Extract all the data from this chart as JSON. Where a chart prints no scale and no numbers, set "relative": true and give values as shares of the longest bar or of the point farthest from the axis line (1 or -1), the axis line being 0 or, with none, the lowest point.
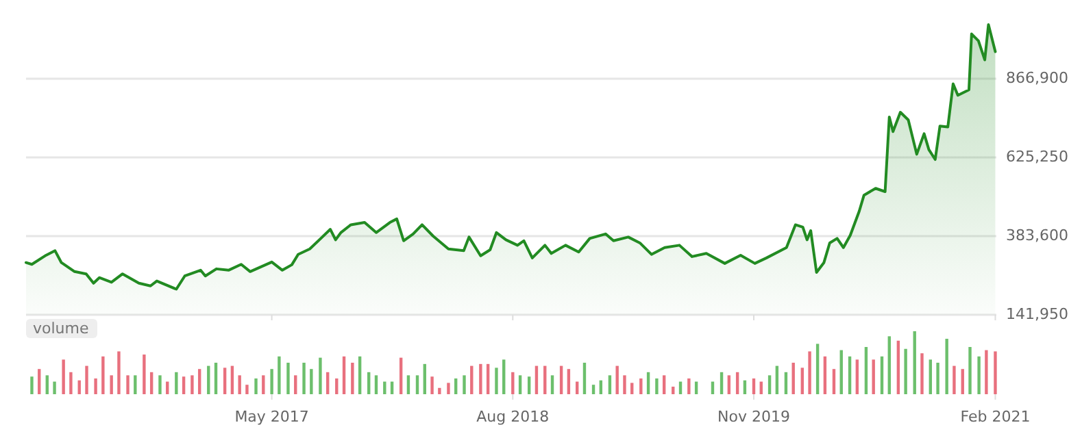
{
  "chart_data": [
    {
      "type": "area",
      "color": "#228b22",
      "grid": "y",
      "tick_labels": "y",
      "xlim": [
        "2016-01-21",
        "2021-02-03"
      ],
      "ylim": [
        141950,
        1108550
      ],
      "yticks": [
        {
          "value": 141950,
          "label": "141,950"
        },
        {
          "value": 383600,
          "label": "383,600"
        },
        {
          "value": 625250,
          "label": "625,250"
        },
        {
          "value": 866900,
          "label": "866,900"
        }
      ],
      "x": [
        "2016-01-21",
        "2016-02-01",
        "2016-02-28",
        "2016-03-16",
        "2016-03-28",
        "2016-04-22",
        "2016-05-14",
        "2016-05-28",
        "2016-06-08",
        "2016-07-01",
        "2016-07-22",
        "2016-08-22",
        "2016-09-13",
        "2016-09-25",
        "2016-11-01",
        "2016-11-17",
        "2016-12-17",
        "2016-12-26",
        "2017-01-16",
        "2017-02-08",
        "2017-03-04",
        "2017-03-21",
        "2017-05-01",
        "2017-05-21",
        "2017-06-08",
        "2017-06-20",
        "2017-07-12",
        "2017-08-02",
        "2017-08-20",
        "2017-08-30",
        "2017-09-09",
        "2017-09-28",
        "2017-10-24",
        "2017-11-15",
        "2017-12-11",
        "2017-12-24",
        "2018-01-06",
        "2018-01-24",
        "2018-02-10",
        "2018-03-03",
        "2018-04-01",
        "2018-04-30",
        "2018-05-10",
        "2018-06-01",
        "2018-06-19",
        "2018-07-01",
        "2018-07-19",
        "2018-08-10",
        "2018-08-22",
        "2018-09-07",
        "2018-10-01",
        "2018-10-13",
        "2018-11-09",
        "2018-12-04",
        "2018-12-25",
        "2019-01-24",
        "2019-02-08",
        "2019-03-08",
        "2019-03-30",
        "2019-04-21",
        "2019-05-16",
        "2019-06-13",
        "2019-07-07",
        "2019-08-03",
        "2019-09-07",
        "2019-10-07",
        "2019-11-03",
        "2019-11-25",
        "2020-01-02",
        "2020-01-19",
        "2020-02-02",
        "2020-02-10",
        "2020-02-17",
        "2020-02-28",
        "2020-03-13",
        "2020-03-24",
        "2020-04-07",
        "2020-04-19",
        "2020-05-02",
        "2020-05-19",
        "2020-05-28",
        "2020-06-19",
        "2020-07-07",
        "2020-07-15",
        "2020-07-22",
        "2020-08-05",
        "2020-08-20",
        "2020-09-05",
        "2020-09-19",
        "2020-09-28",
        "2020-10-10",
        "2020-10-19",
        "2020-11-03",
        "2020-11-13",
        "2020-11-22",
        "2020-12-13",
        "2020-12-18",
        "2020-12-31",
        "2021-01-12",
        "2021-01-19",
        "2021-02-01"
      ],
      "values": [
        302300,
        296900,
        324900,
        338800,
        302300,
        274700,
        267600,
        239100,
        256000,
        242000,
        267600,
        239100,
        230800,
        245800,
        220700,
        261300,
        278900,
        261300,
        283000,
        278900,
        296900,
        274700,
        304000,
        278900,
        295600,
        327500,
        344200,
        376500,
        404500,
        372300,
        394500,
        418400,
        425500,
        394500,
        425500,
        436400,
        369400,
        390300,
        418400,
        383600,
        344200,
        338800,
        380700,
        323300,
        341700,
        394500,
        372300,
        355500,
        369400,
        316600,
        355500,
        330400,
        355500,
        334600,
        376500,
        390300,
        369400,
        380700,
        362700,
        327500,
        348400,
        355500,
        320800,
        330400,
        299800,
        324900,
        299800,
        316600,
        348400,
        418400,
        411300,
        372300,
        400400,
        272400,
        302300,
        362700,
        376500,
        348400,
        386100,
        460300,
        509300,
        530200,
        520200,
        749400,
        704600,
        763900,
        740400,
        635000,
        697900,
        649300,
        618900,
        721300,
        718800,
        851200,
        816000,
        832800,
        1004400,
        983400,
        924700,
        1033000,
        949800
      ]
    },
    {
      "type": "bar",
      "title": "volume",
      "relative": true,
      "tick_labels": "x",
      "xlim": [
        "2016-01-21",
        "2021-02-03"
      ],
      "xticks": [
        {
          "value": "2017-05-01",
          "label": "May 2017"
        },
        {
          "value": "2018-08-01",
          "label": "Aug 2018"
        },
        {
          "value": "2019-11-01",
          "label": "Nov 2019"
        },
        {
          "value": "2021-02-01",
          "label": "Feb 2021"
        }
      ],
      "x": [
        "2016-02-01",
        "2016-02-15",
        "2016-03-01",
        "2016-03-15",
        "2016-04-01",
        "2016-04-15",
        "2016-05-01",
        "2016-05-15",
        "2016-06-01",
        "2016-06-15",
        "2016-07-01",
        "2016-07-15",
        "2016-08-01",
        "2016-08-15",
        "2016-09-01",
        "2016-09-15",
        "2016-10-01",
        "2016-10-15",
        "2016-11-01",
        "2016-11-15",
        "2016-12-01",
        "2016-12-15",
        "2017-01-01",
        "2017-01-15",
        "2017-02-01",
        "2017-02-15",
        "2017-03-01",
        "2017-03-15",
        "2017-04-01",
        "2017-04-15",
        "2017-05-01",
        "2017-05-15",
        "2017-06-01",
        "2017-06-15",
        "2017-07-01",
        "2017-07-15",
        "2017-08-01",
        "2017-08-15",
        "2017-09-01",
        "2017-09-15",
        "2017-10-01",
        "2017-10-15",
        "2017-11-01",
        "2017-11-15",
        "2017-12-01",
        "2017-12-15",
        "2018-01-01",
        "2018-01-15",
        "2018-02-01",
        "2018-02-15",
        "2018-03-01",
        "2018-03-15",
        "2018-04-01",
        "2018-04-15",
        "2018-05-01",
        "2018-05-15",
        "2018-06-01",
        "2018-06-15",
        "2018-07-01",
        "2018-07-15",
        "2018-08-01",
        "2018-08-15",
        "2018-09-01",
        "2018-09-15",
        "2018-10-01",
        "2018-10-15",
        "2018-11-01",
        "2018-11-15",
        "2018-12-01",
        "2018-12-15",
        "2019-01-01",
        "2019-01-15",
        "2019-02-01",
        "2019-02-15",
        "2019-03-01",
        "2019-03-15",
        "2019-04-01",
        "2019-04-15",
        "2019-05-01",
        "2019-05-15",
        "2019-06-01",
        "2019-06-15",
        "2019-07-01",
        "2019-07-15",
        "2019-08-15",
        "2019-09-01",
        "2019-09-15",
        "2019-10-01",
        "2019-10-15",
        "2019-11-01",
        "2019-11-15",
        "2019-12-01",
        "2019-12-15",
        "2020-01-01",
        "2020-01-15",
        "2020-02-01",
        "2020-02-15",
        "2020-03-01",
        "2020-03-15",
        "2020-04-01",
        "2020-04-15",
        "2020-05-01",
        "2020-05-15",
        "2020-06-01",
        "2020-06-15",
        "2020-07-01",
        "2020-07-15",
        "2020-08-01",
        "2020-08-15",
        "2020-09-01",
        "2020-09-15",
        "2020-10-01",
        "2020-10-15",
        "2020-11-01",
        "2020-11-15",
        "2020-12-01",
        "2020-12-15",
        "2021-01-01",
        "2021-01-15",
        "2021-02-01"
      ],
      "values": [
        0.28,
        0.4,
        0.3,
        0.2,
        0.55,
        0.35,
        0.22,
        0.45,
        0.25,
        0.6,
        0.3,
        0.68,
        0.3,
        0.3,
        0.63,
        0.35,
        0.3,
        0.2,
        0.35,
        0.28,
        0.3,
        0.4,
        0.45,
        0.5,
        0.42,
        0.45,
        0.3,
        0.15,
        0.25,
        0.3,
        0.4,
        0.6,
        0.5,
        0.3,
        0.5,
        0.4,
        0.58,
        0.35,
        0.25,
        0.6,
        0.5,
        0.6,
        0.35,
        0.3,
        0.2,
        0.2,
        0.58,
        0.3,
        0.3,
        0.48,
        0.28,
        0.1,
        0.18,
        0.25,
        0.3,
        0.45,
        0.48,
        0.48,
        0.42,
        0.55,
        0.35,
        0.3,
        0.28,
        0.45,
        0.45,
        0.3,
        0.45,
        0.4,
        0.2,
        0.5,
        0.15,
        0.22,
        0.3,
        0.45,
        0.3,
        0.18,
        0.25,
        0.35,
        0.25,
        0.3,
        0.12,
        0.2,
        0.25,
        0.2,
        0.2,
        0.35,
        0.3,
        0.35,
        0.22,
        0.25,
        0.2,
        0.3,
        0.45,
        0.35,
        0.5,
        0.42,
        0.68,
        0.8,
        0.6,
        0.4,
        0.7,
        0.6,
        0.55,
        0.75,
        0.55,
        0.6,
        0.92,
        0.85,
        0.72,
        1.0,
        0.65,
        0.55,
        0.5,
        0.88,
        0.45,
        0.4,
        0.75,
        0.6,
        0.7,
        0.68
      ],
      "colors": [
        "#6cbf6c",
        "#e8707e",
        "#6cbf6c",
        "#6cbf6c",
        "#e8707e",
        "#e8707e",
        "#e8707e",
        "#e8707e",
        "#e8707e",
        "#e8707e",
        "#e8707e",
        "#e8707e",
        "#e8707e",
        "#6cbf6c",
        "#e8707e",
        "#e8707e",
        "#6cbf6c",
        "#e8707e",
        "#6cbf6c",
        "#e8707e",
        "#e8707e",
        "#e8707e",
        "#6cbf6c",
        "#6cbf6c",
        "#e8707e",
        "#e8707e",
        "#e8707e",
        "#e8707e",
        "#6cbf6c",
        "#e8707e",
        "#6cbf6c",
        "#6cbf6c",
        "#6cbf6c",
        "#e8707e",
        "#6cbf6c",
        "#6cbf6c",
        "#6cbf6c",
        "#e8707e",
        "#e8707e",
        "#e8707e",
        "#e8707e",
        "#6cbf6c",
        "#6cbf6c",
        "#6cbf6c",
        "#6cbf6c",
        "#6cbf6c",
        "#e8707e",
        "#6cbf6c",
        "#6cbf6c",
        "#6cbf6c",
        "#e8707e",
        "#e8707e",
        "#e8707e",
        "#6cbf6c",
        "#6cbf6c",
        "#e8707e",
        "#e8707e",
        "#e8707e",
        "#6cbf6c",
        "#6cbf6c",
        "#e8707e",
        "#6cbf6c",
        "#6cbf6c",
        "#e8707e",
        "#e8707e",
        "#6cbf6c",
        "#e8707e",
        "#e8707e",
        "#e8707e",
        "#6cbf6c",
        "#6cbf6c",
        "#6cbf6c",
        "#6cbf6c",
        "#e8707e",
        "#e8707e",
        "#e8707e",
        "#e8707e",
        "#6cbf6c",
        "#6cbf6c",
        "#e8707e",
        "#e8707e",
        "#6cbf6c",
        "#e8707e",
        "#6cbf6c",
        "#6cbf6c",
        "#6cbf6c",
        "#e8707e",
        "#e8707e",
        "#6cbf6c",
        "#e8707e",
        "#e8707e",
        "#6cbf6c",
        "#6cbf6c",
        "#6cbf6c",
        "#e8707e",
        "#e8707e",
        "#e8707e",
        "#6cbf6c",
        "#e8707e",
        "#e8707e",
        "#6cbf6c",
        "#6cbf6c",
        "#e8707e",
        "#6cbf6c",
        "#e8707e",
        "#6cbf6c",
        "#6cbf6c",
        "#e8707e",
        "#6cbf6c",
        "#6cbf6c",
        "#e8707e",
        "#6cbf6c",
        "#6cbf6c",
        "#6cbf6c",
        "#e8707e",
        "#e8707e",
        "#6cbf6c",
        "#6cbf6c",
        "#e8707e",
        "#e8707e"
      ]
    }
  ]
}
